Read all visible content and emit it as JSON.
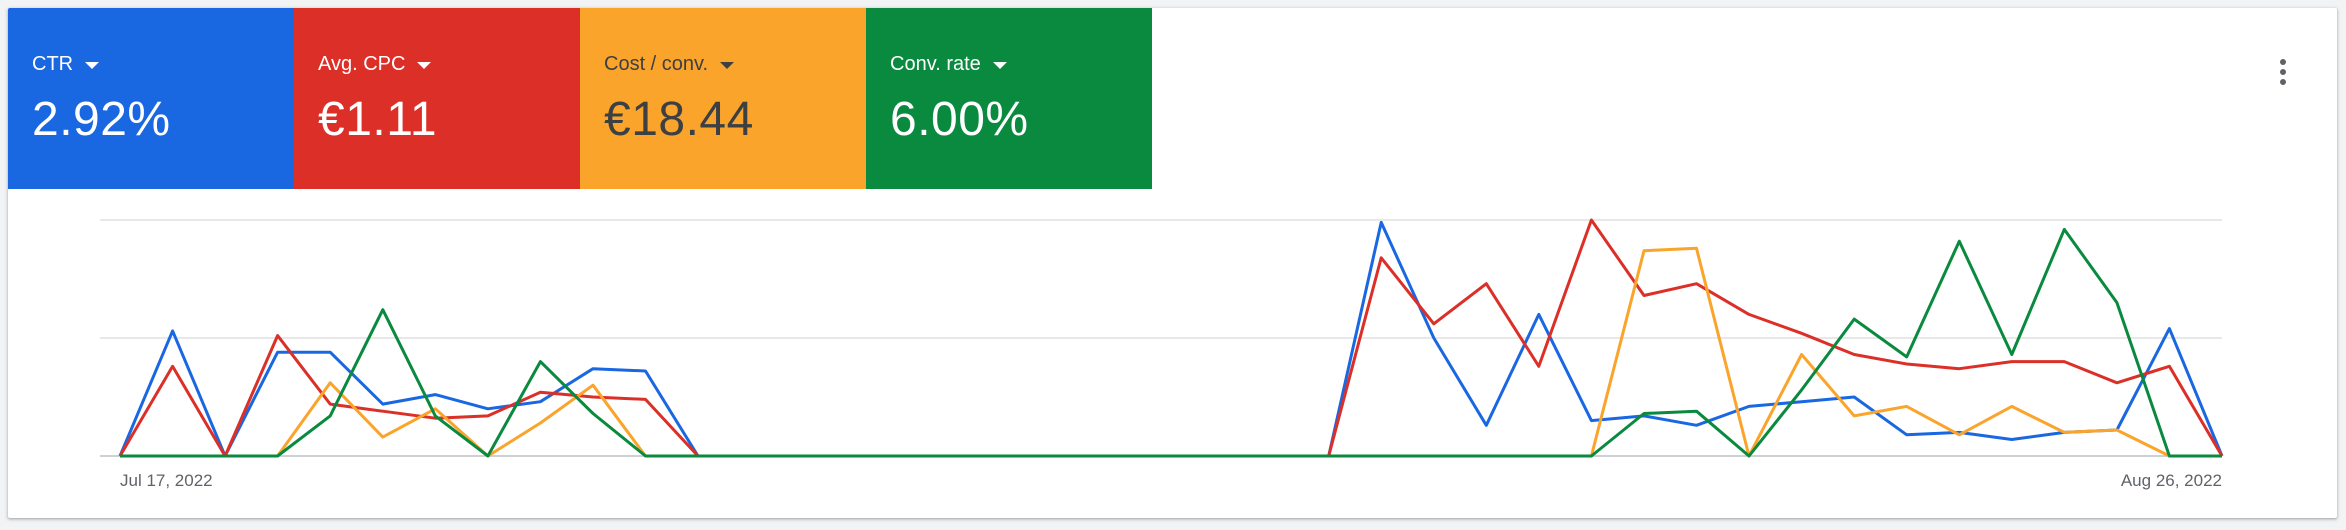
{
  "metrics": [
    {
      "label": "CTR",
      "value": "2.92%",
      "bg": "#1a67e2",
      "fg": "#ffffff"
    },
    {
      "label": "Avg. CPC",
      "value": "€1.11",
      "bg": "#db2f27",
      "fg": "#ffffff"
    },
    {
      "label": "Cost / conv.",
      "value": "€18.44",
      "bg": "#fba42b",
      "fg": "#3c4043"
    },
    {
      "label": "Conv. rate",
      "value": "6.00%",
      "bg": "#0a8a3e",
      "fg": "#ffffff"
    }
  ],
  "menu": {
    "icon": "more-vert-icon"
  },
  "chart_data": {
    "type": "line",
    "x_start_label": "Jul 17, 2022",
    "x_end_label": "Aug 26, 2022",
    "ylim": [
      0,
      1
    ],
    "grid": true,
    "gridlines": [
      0,
      0.5,
      1
    ],
    "series": [
      {
        "color": "#1a67e2",
        "values": [
          0,
          0.53,
          0,
          0.44,
          0.44,
          0.22,
          0.26,
          0.2,
          0.23,
          0.37,
          0.36,
          0,
          0,
          0,
          0,
          0,
          0,
          0,
          0,
          0,
          0,
          0,
          0,
          0,
          0.99,
          0.5,
          0.13,
          0.6,
          0.15,
          0.17,
          0.13,
          0.21,
          0.23,
          0.25,
          0.09,
          0.1,
          0.07,
          0.1,
          0.11,
          0.54,
          0
        ]
      },
      {
        "color": "#db2f27",
        "values": [
          0,
          0.38,
          0,
          0.51,
          0.22,
          0.19,
          0.16,
          0.17,
          0.27,
          0.25,
          0.24,
          0,
          0,
          0,
          0,
          0,
          0,
          0,
          0,
          0,
          0,
          0,
          0,
          0,
          0.84,
          0.56,
          0.73,
          0.38,
          1.0,
          0.68,
          0.73,
          0.6,
          0.52,
          0.43,
          0.39,
          0.37,
          0.4,
          0.4,
          0.31,
          0.38,
          0
        ]
      },
      {
        "color": "#fba42b",
        "values": [
          0,
          0,
          0,
          0,
          0.31,
          0.08,
          0.2,
          0,
          0.14,
          0.3,
          0,
          0,
          0,
          0,
          0,
          0,
          0,
          0,
          0,
          0,
          0,
          0,
          0,
          0,
          0,
          0,
          0,
          0,
          0,
          0.87,
          0.88,
          0,
          0.43,
          0.17,
          0.21,
          0.09,
          0.21,
          0.1,
          0.11,
          0,
          0
        ]
      },
      {
        "color": "#0a8a3e",
        "values": [
          0,
          0,
          0,
          0,
          0.17,
          0.62,
          0.17,
          0,
          0.4,
          0.18,
          0,
          0,
          0,
          0,
          0,
          0,
          0,
          0,
          0,
          0,
          0,
          0,
          0,
          0,
          0,
          0,
          0,
          0,
          0,
          0.18,
          0.19,
          0,
          0.28,
          0.58,
          0.42,
          0.91,
          0.43,
          0.96,
          0.65,
          0,
          0
        ]
      }
    ]
  }
}
